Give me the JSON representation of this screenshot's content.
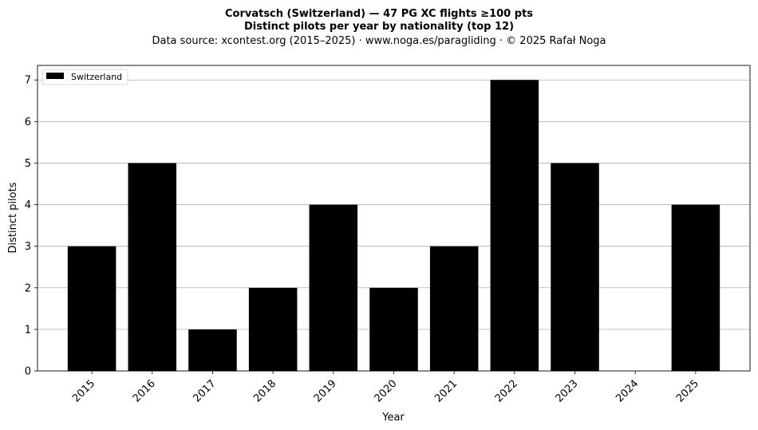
{
  "chart_data": {
    "type": "bar",
    "title_line1": "Corvatsch (Switzerland)  —  47 PG XC flights ≥100 pts",
    "title_line2": "Distinct pilots per year by nationality (top 12)",
    "subtitle": "Data source: xcontest.org (2015–2025)  ·  www.noga.es/paragliding  ·  © 2025 Rafał Noga",
    "xlabel": "Year",
    "ylabel": "Distinct pilots",
    "categories": [
      "2015",
      "2016",
      "2017",
      "2018",
      "2019",
      "2020",
      "2021",
      "2022",
      "2023",
      "2024",
      "2025"
    ],
    "series": [
      {
        "name": "Switzerland",
        "values": [
          3,
          5,
          1,
          2,
          4,
          2,
          3,
          7,
          5,
          0,
          4
        ],
        "color": "#000000"
      }
    ],
    "ylim": [
      0,
      7.35
    ],
    "yticks": [
      "0",
      "1",
      "2",
      "3",
      "4",
      "5",
      "6",
      "7"
    ],
    "grid": "horizontal",
    "legend_position": "top-left"
  }
}
